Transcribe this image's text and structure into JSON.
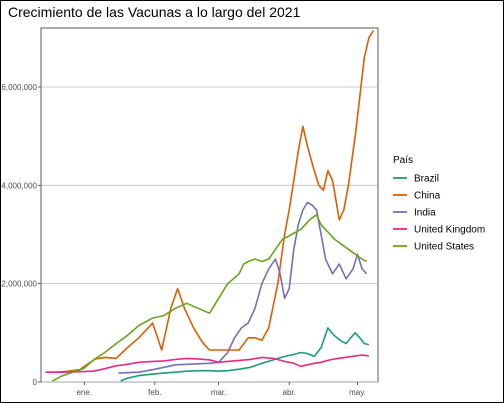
{
  "chart_data": {
    "type": "line",
    "title": "Crecimiento de las Vacunas a lo largo del 2021",
    "xlabel": "",
    "ylabel": "",
    "x_unit": "date (2021)",
    "xlim": [
      "2020-12-13",
      "2021-05-10"
    ],
    "x_ticks": [
      {
        "date": "2021-01-01",
        "label": "ene."
      },
      {
        "date": "2021-02-01",
        "label": "feb."
      },
      {
        "date": "2021-03-01",
        "label": "mar."
      },
      {
        "date": "2021-04-01",
        "label": "abr."
      },
      {
        "date": "2021-05-01",
        "label": "may."
      }
    ],
    "ylim": [
      0,
      7200000
    ],
    "y_ticks": [
      {
        "value": 0,
        "label": "0"
      },
      {
        "value": 2000000,
        "label": "2,000,000"
      },
      {
        "value": 4000000,
        "label": "4,000,000"
      },
      {
        "value": 6000000,
        "label": "6,000,000"
      }
    ],
    "grid": true,
    "legend": {
      "title": "País",
      "placement": "right"
    },
    "series": [
      {
        "name": "Brazil",
        "color": "#1b9e77",
        "points": [
          [
            "2021-01-17",
            20000
          ],
          [
            "2021-01-20",
            80000
          ],
          [
            "2021-01-25",
            130000
          ],
          [
            "2021-01-31",
            160000
          ],
          [
            "2021-02-05",
            180000
          ],
          [
            "2021-02-10",
            200000
          ],
          [
            "2021-02-15",
            220000
          ],
          [
            "2021-02-20",
            230000
          ],
          [
            "2021-02-25",
            230000
          ],
          [
            "2021-03-01",
            220000
          ],
          [
            "2021-03-05",
            230000
          ],
          [
            "2021-03-10",
            260000
          ],
          [
            "2021-03-15",
            300000
          ],
          [
            "2021-03-20",
            380000
          ],
          [
            "2021-03-25",
            450000
          ],
          [
            "2021-03-30",
            520000
          ],
          [
            "2021-04-03",
            560000
          ],
          [
            "2021-04-06",
            600000
          ],
          [
            "2021-04-09",
            580000
          ],
          [
            "2021-04-12",
            520000
          ],
          [
            "2021-04-15",
            700000
          ],
          [
            "2021-04-18",
            1100000
          ],
          [
            "2021-04-20",
            980000
          ],
          [
            "2021-04-22",
            900000
          ],
          [
            "2021-04-24",
            830000
          ],
          [
            "2021-04-26",
            780000
          ],
          [
            "2021-04-28",
            900000
          ],
          [
            "2021-04-30",
            1000000
          ],
          [
            "2021-05-02",
            900000
          ],
          [
            "2021-05-04",
            780000
          ],
          [
            "2021-05-06",
            760000
          ]
        ]
      },
      {
        "name": "China",
        "color": "#d95f02",
        "points": [
          [
            "2020-12-15",
            200000
          ],
          [
            "2020-12-20",
            200000
          ],
          [
            "2020-12-25",
            220000
          ],
          [
            "2020-12-30",
            250000
          ],
          [
            "2021-01-03",
            380000
          ],
          [
            "2021-01-06",
            470000
          ],
          [
            "2021-01-10",
            500000
          ],
          [
            "2021-01-15",
            480000
          ],
          [
            "2021-01-20",
            700000
          ],
          [
            "2021-01-25",
            900000
          ],
          [
            "2021-01-31",
            1200000
          ],
          [
            "2021-02-04",
            650000
          ],
          [
            "2021-02-08",
            1500000
          ],
          [
            "2021-02-11",
            1900000
          ],
          [
            "2021-02-14",
            1500000
          ],
          [
            "2021-02-18",
            1100000
          ],
          [
            "2021-02-22",
            800000
          ],
          [
            "2021-02-25",
            650000
          ],
          [
            "2021-03-01",
            650000
          ],
          [
            "2021-03-05",
            650000
          ],
          [
            "2021-03-10",
            650000
          ],
          [
            "2021-03-14",
            900000
          ],
          [
            "2021-03-17",
            900000
          ],
          [
            "2021-03-20",
            850000
          ],
          [
            "2021-03-23",
            1100000
          ],
          [
            "2021-03-27",
            2000000
          ],
          [
            "2021-03-30",
            3000000
          ],
          [
            "2021-04-01",
            3500000
          ],
          [
            "2021-04-03",
            4100000
          ],
          [
            "2021-04-05",
            4700000
          ],
          [
            "2021-04-07",
            5200000
          ],
          [
            "2021-04-09",
            4800000
          ],
          [
            "2021-04-12",
            4300000
          ],
          [
            "2021-04-14",
            4000000
          ],
          [
            "2021-04-16",
            3900000
          ],
          [
            "2021-04-18",
            4300000
          ],
          [
            "2021-04-20",
            4100000
          ],
          [
            "2021-04-23",
            3300000
          ],
          [
            "2021-04-25",
            3500000
          ],
          [
            "2021-04-27",
            4000000
          ],
          [
            "2021-04-30",
            5000000
          ],
          [
            "2021-05-02",
            5800000
          ],
          [
            "2021-05-04",
            6600000
          ],
          [
            "2021-05-06",
            7000000
          ],
          [
            "2021-05-08",
            7150000
          ]
        ]
      },
      {
        "name": "India",
        "color": "#7570b3",
        "points": [
          [
            "2021-01-16",
            180000
          ],
          [
            "2021-01-20",
            190000
          ],
          [
            "2021-01-25",
            200000
          ],
          [
            "2021-01-31",
            250000
          ],
          [
            "2021-02-05",
            300000
          ],
          [
            "2021-02-10",
            350000
          ],
          [
            "2021-02-15",
            360000
          ],
          [
            "2021-02-20",
            370000
          ],
          [
            "2021-02-25",
            380000
          ],
          [
            "2021-03-01",
            400000
          ],
          [
            "2021-03-05",
            600000
          ],
          [
            "2021-03-08",
            900000
          ],
          [
            "2021-03-11",
            1100000
          ],
          [
            "2021-03-14",
            1200000
          ],
          [
            "2021-03-17",
            1500000
          ],
          [
            "2021-03-20",
            2000000
          ],
          [
            "2021-03-23",
            2300000
          ],
          [
            "2021-03-26",
            2500000
          ],
          [
            "2021-03-28",
            2200000
          ],
          [
            "2021-03-30",
            1700000
          ],
          [
            "2021-04-01",
            1900000
          ],
          [
            "2021-04-03",
            2700000
          ],
          [
            "2021-04-05",
            3200000
          ],
          [
            "2021-04-07",
            3500000
          ],
          [
            "2021-04-09",
            3650000
          ],
          [
            "2021-04-11",
            3600000
          ],
          [
            "2021-04-13",
            3500000
          ],
          [
            "2021-04-15",
            3000000
          ],
          [
            "2021-04-17",
            2500000
          ],
          [
            "2021-04-20",
            2200000
          ],
          [
            "2021-04-23",
            2400000
          ],
          [
            "2021-04-26",
            2100000
          ],
          [
            "2021-04-29",
            2300000
          ],
          [
            "2021-05-01",
            2600000
          ],
          [
            "2021-05-03",
            2300000
          ],
          [
            "2021-05-05",
            2200000
          ]
        ]
      },
      {
        "name": "United Kingdom",
        "color": "#e7298a",
        "points": [
          [
            "2020-12-15",
            200000
          ],
          [
            "2020-12-20",
            200000
          ],
          [
            "2020-12-25",
            200000
          ],
          [
            "2020-12-30",
            210000
          ],
          [
            "2021-01-05",
            220000
          ],
          [
            "2021-01-10",
            270000
          ],
          [
            "2021-01-15",
            330000
          ],
          [
            "2021-01-20",
            360000
          ],
          [
            "2021-01-25",
            400000
          ],
          [
            "2021-01-31",
            420000
          ],
          [
            "2021-02-05",
            430000
          ],
          [
            "2021-02-10",
            460000
          ],
          [
            "2021-02-15",
            480000
          ],
          [
            "2021-02-20",
            470000
          ],
          [
            "2021-02-25",
            450000
          ],
          [
            "2021-03-01",
            400000
          ],
          [
            "2021-03-05",
            420000
          ],
          [
            "2021-03-10",
            440000
          ],
          [
            "2021-03-15",
            460000
          ],
          [
            "2021-03-20",
            500000
          ],
          [
            "2021-03-25",
            480000
          ],
          [
            "2021-03-30",
            420000
          ],
          [
            "2021-04-03",
            380000
          ],
          [
            "2021-04-06",
            320000
          ],
          [
            "2021-04-09",
            350000
          ],
          [
            "2021-04-12",
            380000
          ],
          [
            "2021-04-15",
            400000
          ],
          [
            "2021-04-18",
            440000
          ],
          [
            "2021-04-21",
            470000
          ],
          [
            "2021-04-24",
            490000
          ],
          [
            "2021-04-27",
            510000
          ],
          [
            "2021-04-30",
            530000
          ],
          [
            "2021-05-03",
            550000
          ],
          [
            "2021-05-06",
            530000
          ]
        ]
      },
      {
        "name": "United States",
        "color": "#66a61e",
        "points": [
          [
            "2020-12-18",
            20000
          ],
          [
            "2020-12-22",
            120000
          ],
          [
            "2020-12-27",
            200000
          ],
          [
            "2021-01-01",
            280000
          ],
          [
            "2021-01-05",
            450000
          ],
          [
            "2021-01-10",
            600000
          ],
          [
            "2021-01-15",
            780000
          ],
          [
            "2021-01-20",
            950000
          ],
          [
            "2021-01-25",
            1150000
          ],
          [
            "2021-01-31",
            1300000
          ],
          [
            "2021-02-05",
            1350000
          ],
          [
            "2021-02-10",
            1500000
          ],
          [
            "2021-02-15",
            1600000
          ],
          [
            "2021-02-20",
            1500000
          ],
          [
            "2021-02-25",
            1400000
          ],
          [
            "2021-03-01",
            1700000
          ],
          [
            "2021-03-05",
            2000000
          ],
          [
            "2021-03-10",
            2200000
          ],
          [
            "2021-03-12",
            2400000
          ],
          [
            "2021-03-14",
            2450000
          ],
          [
            "2021-03-17",
            2500000
          ],
          [
            "2021-03-20",
            2450000
          ],
          [
            "2021-03-23",
            2500000
          ],
          [
            "2021-03-26",
            2700000
          ],
          [
            "2021-03-29",
            2900000
          ],
          [
            "2021-04-02",
            3000000
          ],
          [
            "2021-04-06",
            3100000
          ],
          [
            "2021-04-10",
            3300000
          ],
          [
            "2021-04-13",
            3400000
          ],
          [
            "2021-04-15",
            3200000
          ],
          [
            "2021-04-18",
            3050000
          ],
          [
            "2021-04-21",
            2900000
          ],
          [
            "2021-04-24",
            2800000
          ],
          [
            "2021-04-27",
            2700000
          ],
          [
            "2021-04-30",
            2600000
          ],
          [
            "2021-05-03",
            2500000
          ],
          [
            "2021-05-05",
            2450000
          ]
        ]
      }
    ]
  }
}
